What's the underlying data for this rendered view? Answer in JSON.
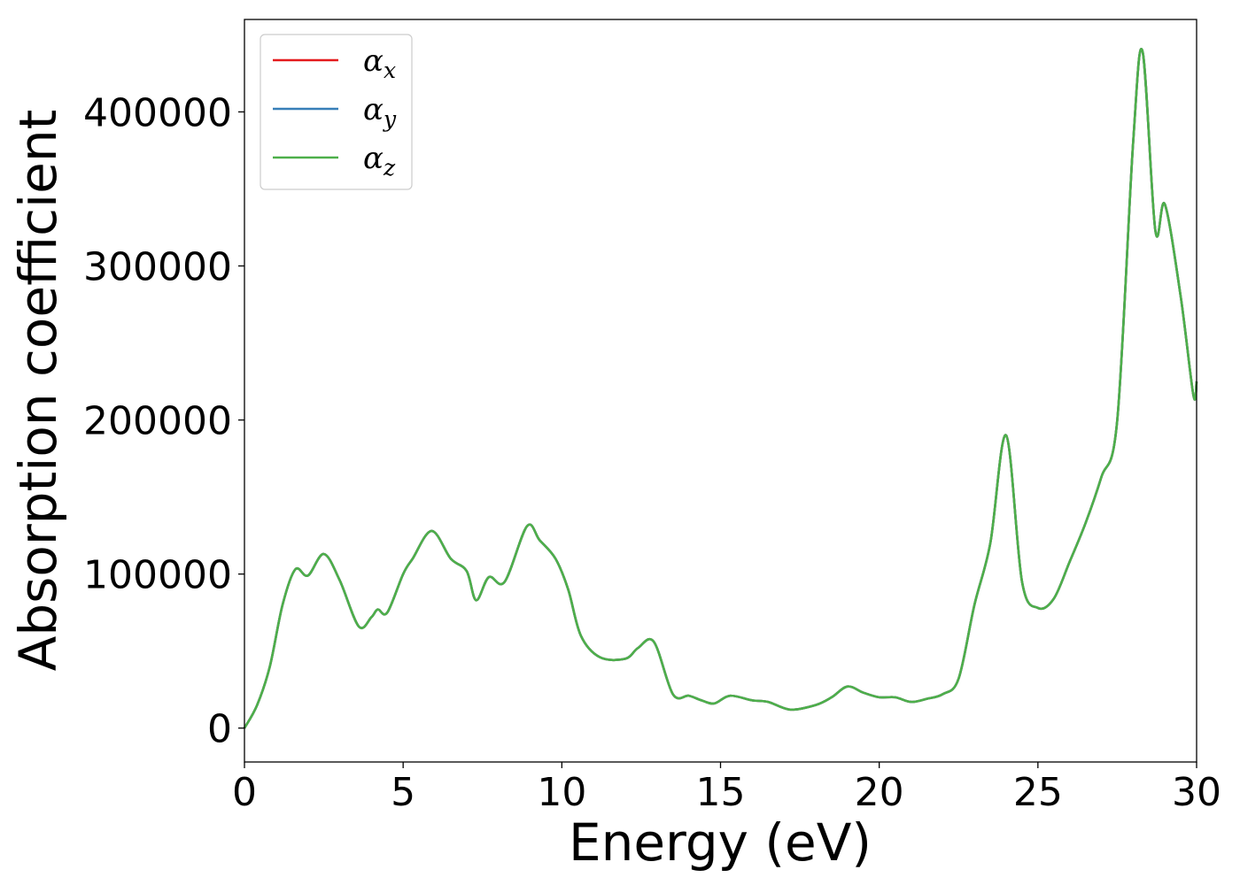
{
  "chart_data": {
    "type": "line",
    "title": "",
    "xlabel": "Energy (eV)",
    "ylabel": "Absorption coefficient",
    "xlim": [
      0,
      30
    ],
    "ylim": [
      -22000,
      460000
    ],
    "xticks": [
      0,
      5,
      10,
      15,
      20,
      25,
      30
    ],
    "yticks": [
      0,
      100000,
      200000,
      300000,
      400000
    ],
    "grid": false,
    "legend_position": "top-left",
    "series": [
      {
        "name": "α",
        "subscript": "x",
        "color": "#e41a1c"
      },
      {
        "name": "α",
        "subscript": "y",
        "color": "#377eb8"
      },
      {
        "name": "α",
        "subscript": "z",
        "color": "#4daf4a"
      }
    ],
    "x": [
      0,
      0.4,
      0.8,
      1.2,
      1.6,
      2.0,
      2.5,
      3.0,
      3.6,
      4.0,
      4.2,
      4.5,
      5.0,
      5.3,
      5.9,
      6.5,
      7.0,
      7.3,
      7.7,
      8.2,
      8.9,
      9.3,
      9.8,
      10.2,
      10.6,
      11.2,
      12.0,
      12.4,
      12.9,
      13.5,
      14.0,
      14.4,
      14.8,
      15.3,
      16.0,
      16.5,
      17.2,
      18.0,
      18.5,
      19.0,
      19.5,
      20.0,
      20.5,
      21.0,
      21.5,
      22.0,
      22.5,
      23.0,
      23.5,
      24.0,
      24.5,
      25.0,
      25.5,
      26.0,
      26.5,
      27.0,
      27.5,
      28.0,
      28.3,
      28.7,
      29.0,
      29.5,
      29.9,
      30.0
    ],
    "values": [
      0,
      15000,
      40000,
      80000,
      103000,
      99000,
      113000,
      96000,
      66000,
      72000,
      77000,
      75000,
      100000,
      110000,
      128000,
      110000,
      102000,
      83000,
      98000,
      95000,
      131000,
      122000,
      110000,
      90000,
      60000,
      46000,
      45000,
      52000,
      56000,
      22000,
      21000,
      18000,
      16000,
      21000,
      18000,
      17000,
      12000,
      15000,
      20000,
      27000,
      23000,
      20000,
      20000,
      17000,
      19000,
      22000,
      32000,
      80000,
      120000,
      190000,
      95000,
      78000,
      84000,
      108000,
      133000,
      163000,
      200000,
      380000,
      439000,
      323000,
      340000,
      280000,
      216000,
      225000
    ]
  }
}
